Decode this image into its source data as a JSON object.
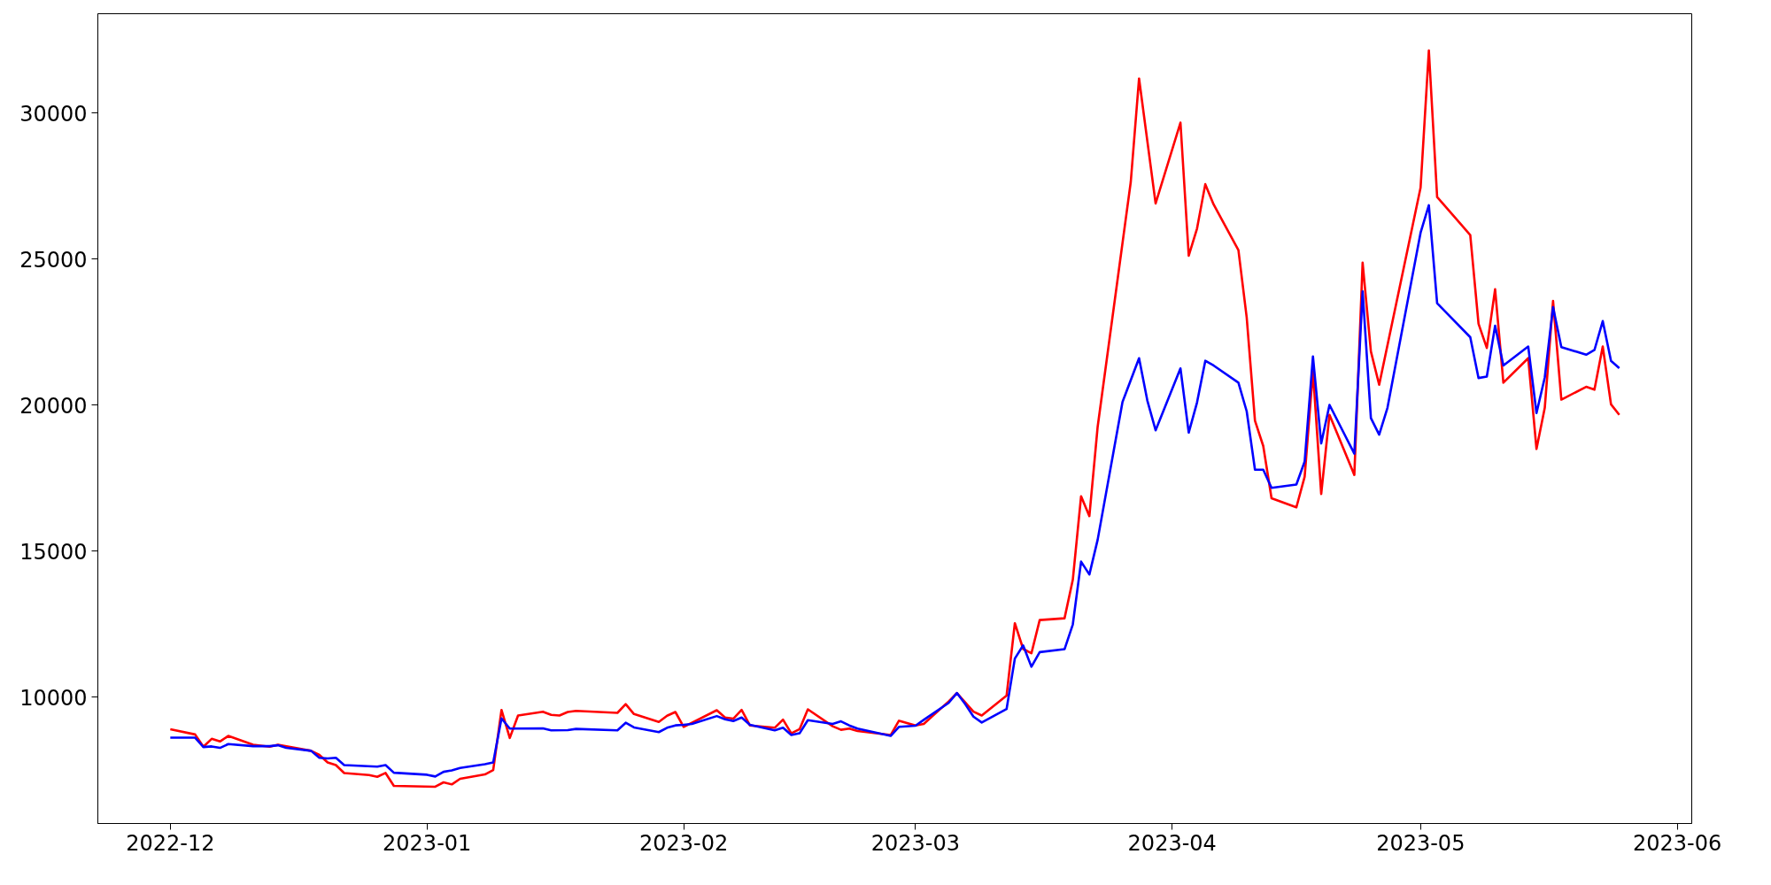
{
  "chart_data": {
    "type": "line",
    "xlim": [
      "2022-11-22T06:00",
      "2023-06-02T18:00"
    ],
    "xticks": [
      {
        "value": "2022-12-01",
        "label": "2022-12"
      },
      {
        "value": "2023-01-01",
        "label": "2023-01"
      },
      {
        "value": "2023-02-01",
        "label": "2023-02"
      },
      {
        "value": "2023-03-01",
        "label": "2023-03"
      },
      {
        "value": "2023-04-01",
        "label": "2023-04"
      },
      {
        "value": "2023-05-01",
        "label": "2023-05"
      },
      {
        "value": "2023-06-01",
        "label": "2023-06"
      }
    ],
    "ylim": [
      5670,
      33410
    ],
    "yticks": [
      10000,
      15000,
      20000,
      25000,
      30000
    ],
    "grid": false,
    "line_style": "solid",
    "series": [
      {
        "color": "#ff0000",
        "x": [
          "2022-12-01",
          "2022-12-04",
          "2022-12-05",
          "2022-12-06",
          "2022-12-07",
          "2022-12-08",
          "2022-12-11",
          "2022-12-13",
          "2022-12-14",
          "2022-12-18",
          "2022-12-19",
          "2022-12-20",
          "2022-12-21",
          "2022-12-22",
          "2022-12-25",
          "2022-12-26",
          "2022-12-27",
          "2022-12-28",
          "2023-01-02",
          "2023-01-03",
          "2023-01-04",
          "2023-01-05",
          "2023-01-08",
          "2023-01-09",
          "2023-01-10",
          "2023-01-11",
          "2023-01-12",
          "2023-01-15",
          "2023-01-16",
          "2023-01-17",
          "2023-01-18",
          "2023-01-19",
          "2023-01-24",
          "2023-01-25",
          "2023-01-26",
          "2023-01-29",
          "2023-01-30",
          "2023-01-31",
          "2023-02-01",
          "2023-02-05",
          "2023-02-06",
          "2023-02-07",
          "2023-02-08",
          "2023-02-09",
          "2023-02-12",
          "2023-02-13",
          "2023-02-14",
          "2023-02-15",
          "2023-02-16",
          "2023-02-19",
          "2023-02-20",
          "2023-02-21",
          "2023-02-22",
          "2023-02-26",
          "2023-02-27",
          "2023-03-01",
          "2023-03-02",
          "2023-03-05",
          "2023-03-06",
          "2023-03-08",
          "2023-03-09",
          "2023-03-12",
          "2023-03-13",
          "2023-03-14",
          "2023-03-15",
          "2023-03-16",
          "2023-03-19",
          "2023-03-20",
          "2023-03-21",
          "2023-03-22",
          "2023-03-23",
          "2023-03-27",
          "2023-03-28",
          "2023-03-30",
          "2023-04-02",
          "2023-04-03",
          "2023-04-04",
          "2023-04-05",
          "2023-04-06",
          "2023-04-09",
          "2023-04-10",
          "2023-04-11",
          "2023-04-12",
          "2023-04-13",
          "2023-04-16",
          "2023-04-17",
          "2023-04-18",
          "2023-04-19",
          "2023-04-20",
          "2023-04-23",
          "2023-04-24",
          "2023-04-25",
          "2023-04-26",
          "2023-05-01",
          "2023-05-02",
          "2023-05-03",
          "2023-05-07",
          "2023-05-08",
          "2023-05-09",
          "2023-05-10",
          "2023-05-11",
          "2023-05-14",
          "2023-05-15",
          "2023-05-16",
          "2023-05-17",
          "2023-05-18",
          "2023-05-21",
          "2023-05-22",
          "2023-05-23",
          "2023-05-24",
          "2023-05-25"
        ],
        "values": [
          8900,
          8720,
          8300,
          8570,
          8480,
          8670,
          8370,
          8300,
          8370,
          8160,
          8020,
          7760,
          7670,
          7400,
          7330,
          7270,
          7400,
          6960,
          6930,
          7080,
          7010,
          7200,
          7350,
          7500,
          9560,
          8600,
          9370,
          9500,
          9390,
          9370,
          9490,
          9530,
          9460,
          9760,
          9420,
          9150,
          9360,
          9490,
          8980,
          9550,
          9300,
          9260,
          9560,
          9030,
          8950,
          9230,
          8760,
          8900,
          9580,
          9000,
          8880,
          8920,
          8840,
          8700,
          9190,
          9030,
          9080,
          9850,
          10140,
          9500,
          9370,
          10050,
          12530,
          11650,
          11500,
          12640,
          12700,
          14020,
          16880,
          16200,
          19260,
          27650,
          31190,
          26910,
          29680,
          25120,
          26050,
          27570,
          26880,
          25310,
          23010,
          19470,
          18600,
          16810,
          16500,
          17550,
          21160,
          16960,
          19670,
          17610,
          24880,
          21840,
          20700,
          27450,
          32150,
          27130,
          25830,
          22790,
          21960,
          23970,
          20770,
          21610,
          18500,
          19910,
          23570,
          20190,
          20630,
          20530,
          22010,
          20030,
          19670
        ]
      },
      {
        "color": "#0000ff",
        "x": [
          "2022-12-01",
          "2022-12-04",
          "2022-12-05",
          "2022-12-06",
          "2022-12-07",
          "2022-12-08",
          "2022-12-11",
          "2022-12-13",
          "2022-12-14",
          "2022-12-15",
          "2022-12-18",
          "2022-12-19",
          "2022-12-20",
          "2022-12-21",
          "2022-12-22",
          "2022-12-26",
          "2022-12-27",
          "2022-12-28",
          "2023-01-01",
          "2023-01-02",
          "2023-01-03",
          "2023-01-04",
          "2023-01-05",
          "2023-01-08",
          "2023-01-09",
          "2023-01-10",
          "2023-01-11",
          "2023-01-15",
          "2023-01-16",
          "2023-01-18",
          "2023-01-19",
          "2023-01-24",
          "2023-01-25",
          "2023-01-26",
          "2023-01-29",
          "2023-01-30",
          "2023-01-31",
          "2023-02-01",
          "2023-02-02",
          "2023-02-05",
          "2023-02-06",
          "2023-02-07",
          "2023-02-08",
          "2023-02-09",
          "2023-02-12",
          "2023-02-13",
          "2023-02-14",
          "2023-02-15",
          "2023-02-16",
          "2023-02-19",
          "2023-02-20",
          "2023-02-21",
          "2023-02-22",
          "2023-02-26",
          "2023-02-27",
          "2023-03-01",
          "2023-03-02",
          "2023-03-05",
          "2023-03-06",
          "2023-03-07",
          "2023-03-08",
          "2023-03-09",
          "2023-03-12",
          "2023-03-13",
          "2023-03-14",
          "2023-03-15",
          "2023-03-16",
          "2023-03-19",
          "2023-03-20",
          "2023-03-21",
          "2023-03-22",
          "2023-03-23",
          "2023-03-26",
          "2023-03-28",
          "2023-03-29",
          "2023-03-30",
          "2023-04-02",
          "2023-04-03",
          "2023-04-04",
          "2023-04-05",
          "2023-04-06",
          "2023-04-09",
          "2023-04-10",
          "2023-04-11",
          "2023-04-12",
          "2023-04-13",
          "2023-04-16",
          "2023-04-17",
          "2023-04-18",
          "2023-04-19",
          "2023-04-20",
          "2023-04-23",
          "2023-04-24",
          "2023-04-25",
          "2023-04-26",
          "2023-04-27",
          "2023-05-01",
          "2023-05-02",
          "2023-05-03",
          "2023-05-07",
          "2023-05-08",
          "2023-05-09",
          "2023-05-10",
          "2023-05-11",
          "2023-05-14",
          "2023-05-15",
          "2023-05-16",
          "2023-05-17",
          "2023-05-18",
          "2023-05-21",
          "2023-05-22",
          "2023-05-23",
          "2023-05-24",
          "2023-05-25"
        ],
        "values": [
          8610,
          8610,
          8290,
          8310,
          8260,
          8390,
          8320,
          8320,
          8350,
          8260,
          8160,
          7920,
          7900,
          7920,
          7670,
          7620,
          7670,
          7410,
          7340,
          7280,
          7440,
          7490,
          7570,
          7700,
          7760,
          9270,
          8920,
          8930,
          8860,
          8870,
          8910,
          8860,
          9120,
          8960,
          8800,
          8950,
          9030,
          9050,
          9080,
          9350,
          9240,
          9180,
          9300,
          9050,
          8860,
          8950,
          8700,
          8760,
          9210,
          9080,
          9170,
          9030,
          8920,
          8670,
          8980,
          9020,
          9220,
          9800,
          10140,
          9760,
          9330,
          9130,
          9590,
          11320,
          11770,
          11040,
          11540,
          11640,
          12490,
          14640,
          14200,
          15390,
          20110,
          21610,
          20160,
          19140,
          21260,
          19060,
          20090,
          21520,
          21360,
          20770,
          19790,
          17790,
          17790,
          17170,
          17280,
          18070,
          21670,
          18690,
          20010,
          18340,
          23900,
          19560,
          18990,
          19910,
          25910,
          26850,
          23490,
          22330,
          20930,
          20980,
          22720,
          21360,
          22010,
          19730,
          20950,
          23360,
          21990,
          21730,
          21890,
          22880,
          21520,
          21270
        ]
      }
    ]
  }
}
